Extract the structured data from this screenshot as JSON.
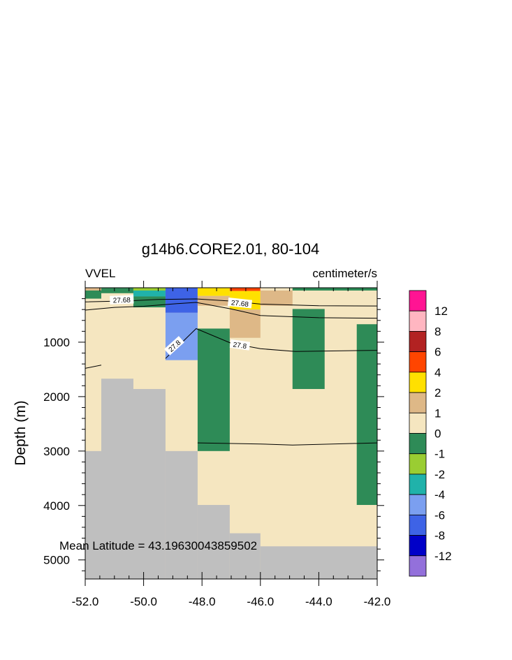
{
  "chart_data": {
    "type": "heatmap",
    "title": "g14b6.CORE2.01, 80-104",
    "left_label": "VVEL",
    "right_label": "centimeter/s",
    "ylabel": "Depth (m)",
    "xlabel": "",
    "annotation": "Mean Latitude = 43.19630043859502",
    "xlim": [
      -52.0,
      -42.0
    ],
    "ylim": [
      5350,
      0
    ],
    "x_ticks": [
      -52.0,
      -50.0,
      -48.0,
      -46.0,
      -44.0,
      -42.0
    ],
    "x_tick_labels": [
      "-52.0",
      "-50.0",
      "-48.0",
      "-46.0",
      "-44.0",
      "-42.0"
    ],
    "y_ticks": [
      1000,
      2000,
      3000,
      4000,
      5000
    ],
    "y_tick_labels": [
      "1000",
      "2000",
      "3000",
      "4000",
      "5000"
    ],
    "background_color": "#f5e6c0",
    "land_color": "#bfbfbf",
    "colorbar": {
      "labels": [
        "12",
        "8",
        "6",
        "4",
        "2",
        "1",
        "0",
        "-1",
        "-2",
        "-4",
        "-6",
        "-8",
        "-12"
      ],
      "colors": [
        "#ff1493",
        "#ffb6c1",
        "#b22222",
        "#ff4500",
        "#ffe000",
        "#deb887",
        "#f5e6c0",
        "#2e8b57",
        "#9acd32",
        "#20b2aa",
        "#7b9ff0",
        "#3e63e6",
        "#0000c8",
        "#9370db"
      ]
    },
    "land": [
      {
        "x0": -52.0,
        "x1": -51.45,
        "y0": 3000,
        "y1": 5350
      },
      {
        "x0": -51.45,
        "x1": -50.35,
        "y0": 1670,
        "y1": 5350
      },
      {
        "x0": -50.35,
        "x1": -49.25,
        "y0": 1860,
        "y1": 5350
      },
      {
        "x0": -49.25,
        "x1": -48.15,
        "y0": 3000,
        "y1": 5350
      },
      {
        "x0": -48.15,
        "x1": -47.05,
        "y0": 3990,
        "y1": 5350
      },
      {
        "x0": -47.05,
        "x1": -46.0,
        "y0": 4510,
        "y1": 5350
      },
      {
        "x0": -46.0,
        "x1": -42.0,
        "y0": 4750,
        "y1": 5350
      }
    ],
    "cells": [
      {
        "x0": -52.0,
        "x1": -51.45,
        "y0": 0,
        "y1": 40,
        "value": -1
      },
      {
        "x0": -52.0,
        "x1": -51.45,
        "y0": 40,
        "y1": 200,
        "value": -0.5
      },
      {
        "x0": -51.45,
        "x1": -50.35,
        "y0": 0,
        "y1": 25,
        "value": -1
      },
      {
        "x0": -51.45,
        "x1": -50.35,
        "y0": 25,
        "y1": 100,
        "value": -0.5
      },
      {
        "x0": -50.35,
        "x1": -49.25,
        "y0": 0,
        "y1": 30,
        "value": -1
      },
      {
        "x0": -50.35,
        "x1": -49.25,
        "y0": 30,
        "y1": 160,
        "value": -3
      },
      {
        "x0": -50.35,
        "x1": -49.25,
        "y0": 160,
        "y1": 360,
        "value": -0.5
      },
      {
        "x0": -49.25,
        "x1": -48.15,
        "y0": 0,
        "y1": 460,
        "value": -7
      },
      {
        "x0": -49.25,
        "x1": -48.15,
        "y0": 460,
        "y1": 1330,
        "value": -5
      },
      {
        "x0": -48.15,
        "x1": -47.05,
        "y0": 0,
        "y1": 150,
        "value": 3
      },
      {
        "x0": -48.15,
        "x1": -47.05,
        "y0": 150,
        "y1": 330,
        "value": 1.5
      },
      {
        "x0": -48.15,
        "x1": -47.05,
        "y0": 750,
        "y1": 3000,
        "value": -0.5
      },
      {
        "x0": -47.05,
        "x1": -46.0,
        "y0": 0,
        "y1": 60,
        "value": 5
      },
      {
        "x0": -47.05,
        "x1": -46.0,
        "y0": 60,
        "y1": 400,
        "value": 3
      },
      {
        "x0": -47.05,
        "x1": -46.0,
        "y0": 400,
        "y1": 920,
        "value": 1.5
      },
      {
        "x0": -46.0,
        "x1": -44.9,
        "y0": 0,
        "y1": 330,
        "value": 1.5
      },
      {
        "x0": -44.9,
        "x1": -43.8,
        "y0": 390,
        "y1": 1860,
        "value": -0.5
      },
      {
        "x0": -42.7,
        "x1": -42.0,
        "y0": 670,
        "y1": 3990,
        "value": -0.5
      }
    ],
    "contours": [
      {
        "level": "27.68",
        "points": [
          [
            -52.0,
            260
          ],
          [
            -50.5,
            240
          ],
          [
            -49.5,
            215
          ],
          [
            -48.2,
            205
          ],
          [
            -47.0,
            245
          ],
          [
            -46.0,
            300
          ],
          [
            -44.0,
            330
          ],
          [
            -42.0,
            335
          ]
        ]
      },
      {
        "level": "27.8",
        "points": [
          [
            -52.0,
            410
          ],
          [
            -51.0,
            360
          ],
          [
            -50.0,
            340
          ],
          [
            -48.8,
            290
          ],
          [
            -48.2,
            270
          ],
          [
            -47.0,
            390
          ],
          [
            -46.0,
            510
          ],
          [
            -44.0,
            550
          ],
          [
            -42.0,
            560
          ]
        ]
      },
      {
        "level": "27.8",
        "points": [
          [
            -49.25,
            1300
          ],
          [
            -48.2,
            750
          ],
          [
            -47.0,
            1020
          ],
          [
            -46.0,
            1120
          ],
          [
            -44.8,
            1170
          ],
          [
            -42.0,
            1150
          ]
        ]
      },
      {
        "level": "",
        "points": [
          [
            -52.0,
            1480
          ],
          [
            -51.45,
            1420
          ]
        ]
      },
      {
        "level": "",
        "points": [
          [
            -48.15,
            2850
          ],
          [
            -46.0,
            2870
          ],
          [
            -44.9,
            2890
          ],
          [
            -42.0,
            2850
          ]
        ]
      }
    ],
    "contour_labels": [
      {
        "text": "27.68",
        "x": -50.75,
        "y": 220,
        "angle": -2
      },
      {
        "text": "27.68",
        "x": -46.7,
        "y": 280,
        "angle": 6
      },
      {
        "text": "27.8",
        "x": -48.95,
        "y": 1065,
        "angle": -42
      },
      {
        "text": "27.8",
        "x": -46.7,
        "y": 1050,
        "angle": 8
      }
    ],
    "top_strips": [
      {
        "x0": -52.0,
        "x1": -51.45,
        "value": 1.5
      },
      {
        "x0": -50.35,
        "x1": -49.25,
        "value": -2
      },
      {
        "x0": -46.0,
        "x1": -44.9,
        "value": 0
      },
      {
        "x0": -44.9,
        "x1": -42.0,
        "value": -1
      }
    ]
  }
}
